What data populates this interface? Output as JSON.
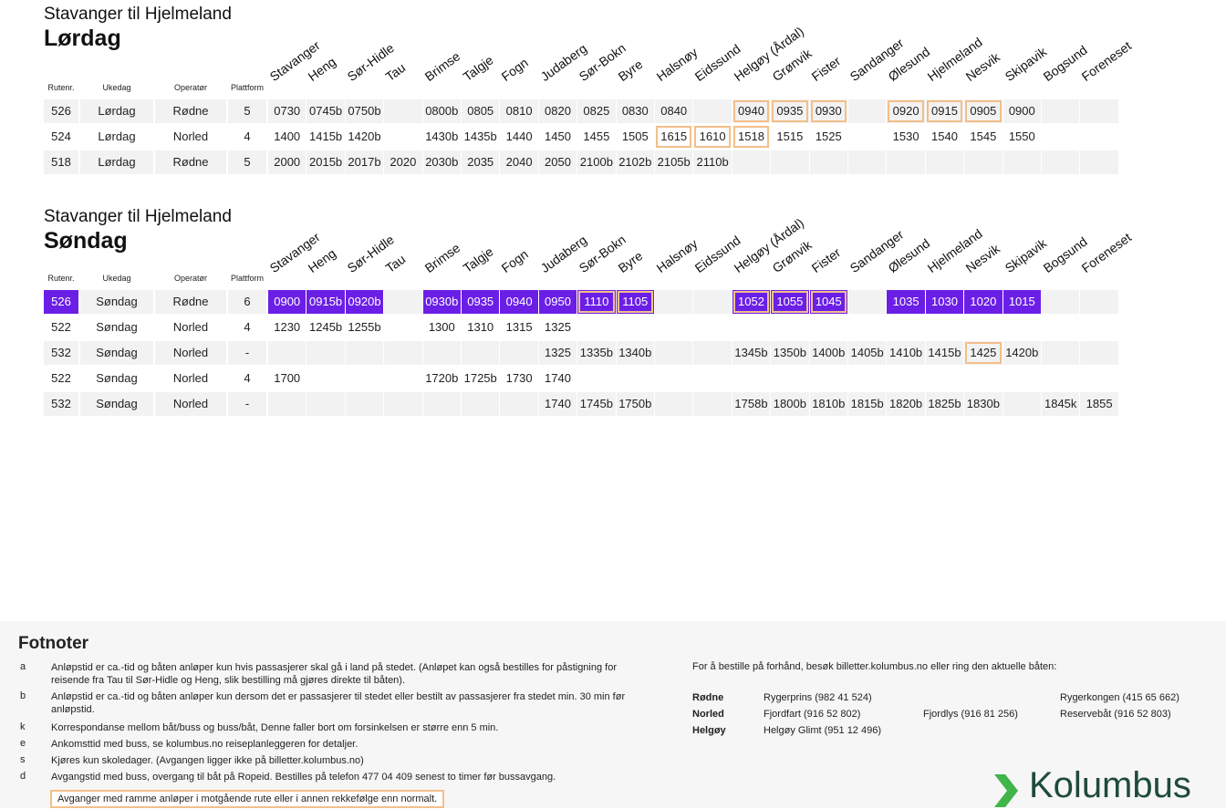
{
  "stops": [
    "Stavanger",
    "Heng",
    "Sør-Hidle",
    "Tau",
    "Brimse",
    "Talgje",
    "Fogn",
    "Judaberg",
    "Sør-Bokn",
    "Byre",
    "Halsnøy",
    "Eidssund",
    "Helgøy (Årdal)",
    "Grønvik",
    "Fister",
    "Sandanger",
    "Ølesund",
    "Hjelmeland",
    "Nesvik",
    "Skipavik",
    "Bogsund",
    "Foreneset"
  ],
  "columns": {
    "route": "Rutenr.",
    "day": "Ukedag",
    "operator": "Operatør",
    "platform": "Plattform"
  },
  "saturday": {
    "route_title": "Stavanger til Hjelmeland",
    "day_title": "Lørdag",
    "rows": [
      {
        "route": "526",
        "day": "Lørdag",
        "operator": "Rødne",
        "platform": "5",
        "times": [
          "0730",
          "0745b",
          "0750b",
          "",
          "0800b",
          "0805",
          "0810",
          "0820",
          "0825",
          "0830",
          "0840",
          "",
          "0940",
          "0935",
          "0930",
          "",
          "0920",
          "0915",
          "0905",
          "0900",
          "",
          ""
        ],
        "framed": [
          12,
          13,
          14,
          16,
          17,
          18
        ],
        "highlight": false
      },
      {
        "route": "524",
        "day": "Lørdag",
        "operator": "Norled",
        "platform": "4",
        "times": [
          "1400",
          "1415b",
          "1420b",
          "",
          "1430b",
          "1435b",
          "1440",
          "1450",
          "1455",
          "1505",
          "1615",
          "1610",
          "1518",
          "1515",
          "1525",
          "",
          "1530",
          "1540",
          "1545",
          "1550",
          "",
          ""
        ],
        "framed": [
          10,
          11,
          12
        ],
        "highlight": false
      },
      {
        "route": "518",
        "day": "Lørdag",
        "operator": "Rødne",
        "platform": "5",
        "times": [
          "2000",
          "2015b",
          "2017b",
          "2020",
          "2030b",
          "2035",
          "2040",
          "2050",
          "2100b",
          "2102b",
          "2105b",
          "2110b",
          "",
          "",
          "",
          "",
          "",
          "",
          "",
          "",
          "",
          ""
        ],
        "framed": [],
        "highlight": false
      }
    ]
  },
  "sunday": {
    "route_title": "Stavanger til Hjelmeland",
    "day_title": "Søndag",
    "rows": [
      {
        "route": "526",
        "day": "Søndag",
        "operator": "Rødne",
        "platform": "6",
        "times": [
          "0900",
          "0915b",
          "0920b",
          "",
          "0930b",
          "0935",
          "0940",
          "0950",
          "1110",
          "1105",
          "",
          "",
          "1052",
          "1055",
          "1045",
          "",
          "1035",
          "1030",
          "1020",
          "1015",
          "",
          ""
        ],
        "framed": [
          8,
          9,
          12,
          13,
          14
        ],
        "highlight": true
      },
      {
        "route": "522",
        "day": "Søndag",
        "operator": "Norled",
        "platform": "4",
        "times": [
          "1230",
          "1245b",
          "1255b",
          "",
          "1300",
          "1310",
          "1315",
          "1325",
          "",
          "",
          "",
          "",
          "",
          "",
          "",
          "",
          "",
          "",
          "",
          "",
          "",
          ""
        ],
        "framed": [],
        "highlight": false
      },
      {
        "route": "532",
        "day": "Søndag",
        "operator": "Norled",
        "platform": "-",
        "times": [
          "",
          "",
          "",
          "",
          "",
          "",
          "",
          "1325",
          "1335b",
          "1340b",
          "",
          "",
          "1345b",
          "1350b",
          "1400b",
          "1405b",
          "1410b",
          "1415b",
          "1425",
          "1420b",
          "",
          ""
        ],
        "framed": [
          18
        ],
        "highlight": false
      },
      {
        "route": "522",
        "day": "Søndag",
        "operator": "Norled",
        "platform": "4",
        "times": [
          "1700",
          "",
          "",
          "",
          "1720b",
          "1725b",
          "1730",
          "1740",
          "",
          "",
          "",
          "",
          "",
          "",
          "",
          "",
          "",
          "",
          "",
          "",
          "",
          ""
        ],
        "framed": [],
        "highlight": false
      },
      {
        "route": "532",
        "day": "Søndag",
        "operator": "Norled",
        "platform": "-",
        "times": [
          "",
          "",
          "",
          "",
          "",
          "",
          "",
          "1740",
          "1745b",
          "1750b",
          "",
          "",
          "1758b",
          "1800b",
          "1810b",
          "1815b",
          "1820b",
          "1825b",
          "1830b",
          "",
          "1845k",
          "1855"
        ],
        "framed": [],
        "highlight": false
      }
    ]
  },
  "footnotes": {
    "title": "Fotnoter",
    "items": [
      {
        "key": "a",
        "text": "Anløpstid er ca.-tid og båten anløper kun hvis passasjerer skal gå i land på stedet. (Anløpet kan også bestilles for påstigning for reisende fra Tau til Sør-Hidle og Heng, slik bestilling må gjøres direkte til båten)."
      },
      {
        "key": "b",
        "text": "Anløpstid er ca.-tid og båten anløper kun dersom det er passasjerer til stedet eller bestilt av passasjerer fra stedet min. 30 min før anløpstid."
      },
      {
        "key": "k",
        "text": "Korrespondanse mellom båt/buss og buss/båt, Denne faller bort om forsinkelsen er større enn 5 min."
      },
      {
        "key": "e",
        "text": "Ankomsttid med buss, se kolumbus.no reiseplanleggeren for detaljer."
      },
      {
        "key": "s",
        "text": "Kjøres kun skoledager. (Avgangen ligger ikke på billetter.kolumbus.no)"
      },
      {
        "key": "d",
        "text": "Avgangstid med buss, overgang til båt på Ropeid. Bestilles på telefon 477 04 409 senest to timer før bussavgang."
      }
    ],
    "frame_note": "Avganger med ramme anløper i motgående rute eller i annen rekkefølge enn normalt."
  },
  "booking": {
    "intro": "For å bestille på forhånd, besøk billetter.kolumbus.no eller ring den aktuelle båten:",
    "operators": [
      {
        "name": "Rødne",
        "boats": [
          "Rygerprins (982 41 524)",
          "",
          "Rygerkongen (415 65 662)"
        ]
      },
      {
        "name": "Norled",
        "boats": [
          "Fjordfart (916 52 802)",
          "Fjordlys (916 81 256)",
          "Reservebåt (916 52 803)"
        ]
      },
      {
        "name": "Helgøy",
        "boats": [
          "Helgøy Glimt (951 12 496)",
          "",
          ""
        ]
      }
    ]
  },
  "brand": {
    "name": "Kolumbus",
    "color": "#1f4b3a",
    "accent": "#3fb54a",
    "highlight": "#6b1fe6",
    "frame": "#f3bf8a"
  }
}
